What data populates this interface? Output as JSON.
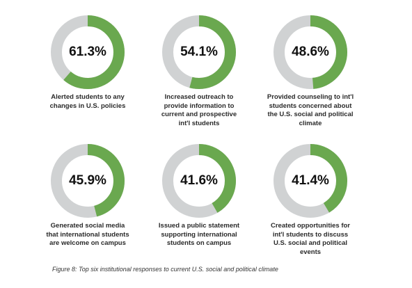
{
  "chart_data": {
    "type": "pie",
    "variant": "donut",
    "categories": [
      "Alerted students to any changes in U.S. policies",
      "Increased outreach to provide information to current and prospective int'l students",
      "Provided counseling to int'l students concerned about the U.S. social and political climate",
      "Generated social media that international students are welcome on campus",
      "Issued a public statement supporting international students on campus",
      "Created opportunities for int'l students to discuss U.S. social and political events"
    ],
    "captions": [
      [
        "Alerted students to any",
        "changes in U.S. policies"
      ],
      [
        "Increased outreach to",
        "provide information to",
        "current and prospective",
        "int'l students"
      ],
      [
        "Provided counseling to int'l",
        "students concerned about",
        "the U.S. social and political",
        "climate"
      ],
      [
        "Generated social media",
        "that international students",
        "are welcome on campus"
      ],
      [
        "Issued a public statement",
        "supporting international",
        "students on campus"
      ],
      [
        "Created opportunities for",
        "int'l students to discuss",
        "U.S. social and political",
        "events"
      ]
    ],
    "values": [
      61.3,
      54.1,
      48.6,
      45.9,
      41.6,
      41.4
    ],
    "labels": [
      "61.3%",
      "54.1%",
      "48.6%",
      "45.9%",
      "41.6%",
      "41.4%"
    ],
    "caption": "Figure 8: Top six institutional responses to current U.S. social and political climate",
    "colors": {
      "filled": "#6aa84f",
      "remainder": "#d0d2d3"
    }
  }
}
